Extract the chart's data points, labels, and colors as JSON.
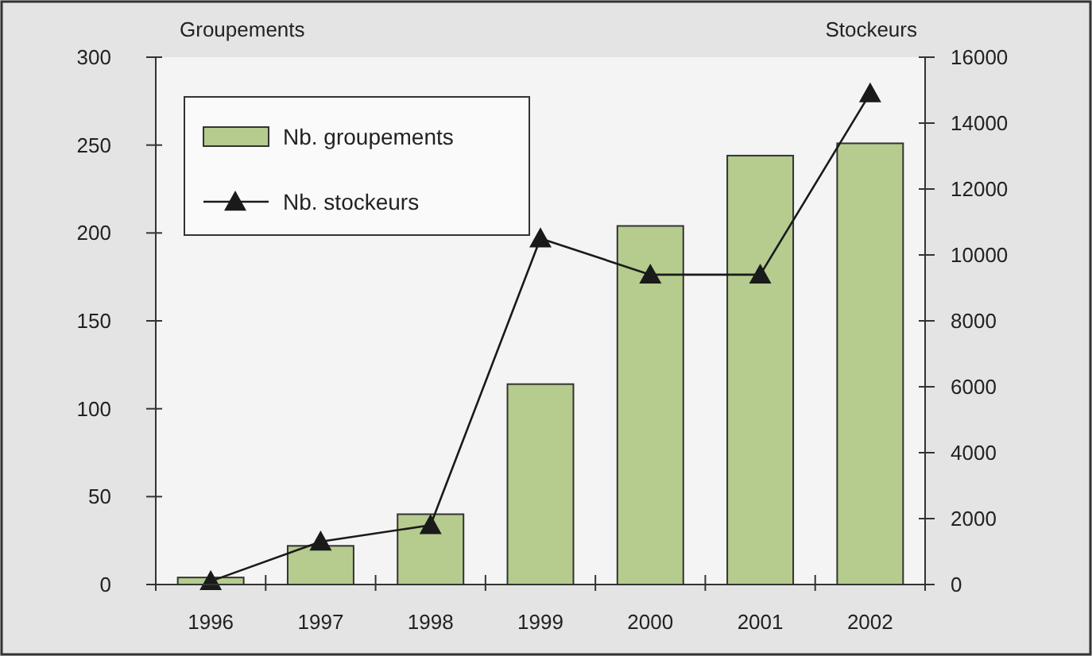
{
  "chart_data": {
    "type": "bar",
    "categories": [
      "1996",
      "1997",
      "1998",
      "1999",
      "2000",
      "2001",
      "2002"
    ],
    "ylabel": "Groupements",
    "y2label": "Stockeurs",
    "series": [
      {
        "name": "Nb. groupements",
        "color": "#b5cc8e",
        "values": [
          4,
          22,
          40,
          114,
          204,
          244,
          251
        ]
      },
      {
        "name": "Nb. stockeurs",
        "type": "line",
        "axis": "y2",
        "color": "#1a1a1a",
        "marker": "triangle",
        "values": [
          100,
          1300,
          1800,
          10500,
          9400,
          9400,
          14900
        ]
      }
    ],
    "ylim": [
      0,
      300
    ],
    "yticks": [
      0,
      50,
      100,
      150,
      200,
      250,
      300
    ],
    "y2lim": [
      0,
      16000
    ],
    "y2ticks": [
      0,
      2000,
      4000,
      6000,
      8000,
      10000,
      12000,
      14000,
      16000
    ],
    "legend": "top left",
    "grid": false
  }
}
